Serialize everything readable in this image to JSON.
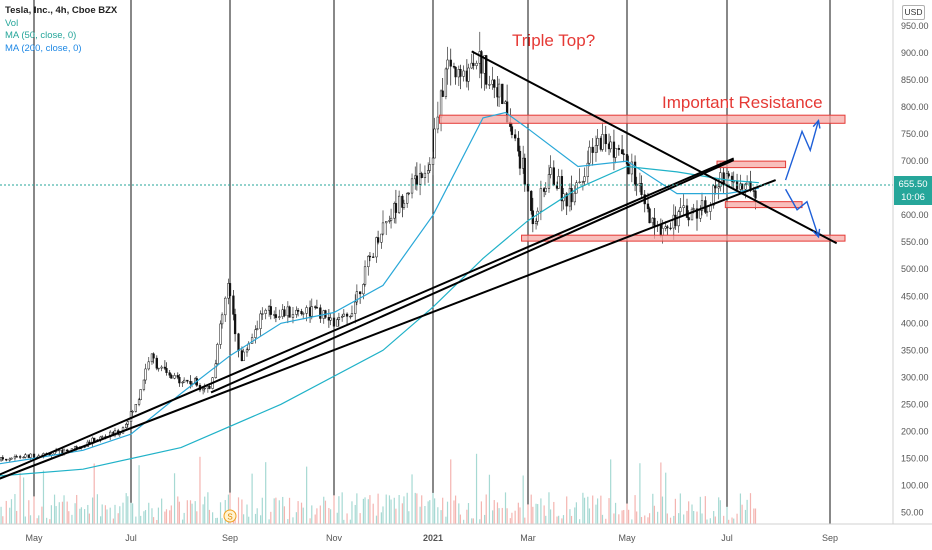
{
  "chart_data": {
    "type": "candlestick",
    "symbol_label": "Tesla, Inc., 4h, Cboe BZX",
    "indicators": [
      "Vol",
      "MA (50, close, 0)",
      "MA (200, close, 0)"
    ],
    "currency": "USD",
    "last_price": "655.50",
    "countdown": "10:06",
    "y_axis": {
      "ylim": [
        30,
        1000
      ],
      "ticks": [
        50,
        100,
        150,
        200,
        250,
        300,
        350,
        400,
        450,
        500,
        550,
        600,
        650,
        700,
        750,
        800,
        850,
        900,
        950
      ],
      "tick_labels": [
        "50.00",
        "100.00",
        "150.00",
        "200.00",
        "250.00",
        "300.00",
        "350.00",
        "400.00",
        "450.00",
        "500.00",
        "550.00",
        "600.00",
        "650.00",
        "700.00",
        "750.00",
        "800.00",
        "850.00",
        "900.00",
        "950.00"
      ]
    },
    "x_axis": {
      "tick_labels": [
        "May",
        "Jul",
        "Sep",
        "Nov",
        "2021",
        "Mar",
        "May",
        "Jul",
        "Sep"
      ]
    },
    "price_path": [
      [
        "2020-04-01",
        145
      ],
      [
        "2020-04-15",
        150
      ],
      [
        "2020-05-01",
        155
      ],
      [
        "2020-05-20",
        162
      ],
      [
        "2020-06-10",
        185
      ],
      [
        "2020-06-25",
        200
      ],
      [
        "2020-07-05",
        250
      ],
      [
        "2020-07-13",
        340
      ],
      [
        "2020-07-25",
        300
      ],
      [
        "2020-08-10",
        290
      ],
      [
        "2020-08-20",
        280
      ],
      [
        "2020-08-31",
        470
      ],
      [
        "2020-09-08",
        330
      ],
      [
        "2020-09-20",
        420
      ],
      [
        "2020-10-05",
        420
      ],
      [
        "2020-10-20",
        425
      ],
      [
        "2020-11-01",
        400
      ],
      [
        "2020-11-10",
        410
      ],
      [
        "2020-11-20",
        490
      ],
      [
        "2020-12-01",
        580
      ],
      [
        "2020-12-15",
        640
      ],
      [
        "2020-12-31",
        700
      ],
      [
        "2021-01-10",
        880
      ],
      [
        "2021-01-20",
        850
      ],
      [
        "2021-01-27",
        900
      ],
      [
        "2021-02-10",
        840
      ],
      [
        "2021-02-25",
        700
      ],
      [
        "2021-03-05",
        590
      ],
      [
        "2021-03-15",
        680
      ],
      [
        "2021-03-25",
        630
      ],
      [
        "2021-04-05",
        680
      ],
      [
        "2021-04-15",
        740
      ],
      [
        "2021-04-25",
        720
      ],
      [
        "2021-05-05",
        680
      ],
      [
        "2021-05-15",
        590
      ],
      [
        "2021-05-20",
        570
      ],
      [
        "2021-06-01",
        600
      ],
      [
        "2021-06-10",
        605
      ],
      [
        "2021-06-20",
        620
      ],
      [
        "2021-06-30",
        680
      ],
      [
        "2021-07-10",
        650
      ],
      [
        "2021-07-20",
        655
      ]
    ],
    "ma50": [
      [
        "2020-04-01",
        135
      ],
      [
        "2020-05-01",
        150
      ],
      [
        "2020-06-01",
        165
      ],
      [
        "2020-07-01",
        195
      ],
      [
        "2020-08-01",
        270
      ],
      [
        "2020-09-01",
        340
      ],
      [
        "2020-10-01",
        400
      ],
      [
        "2020-11-01",
        420
      ],
      [
        "2020-12-01",
        470
      ],
      [
        "2021-01-01",
        600
      ],
      [
        "2021-02-01",
        780
      ],
      [
        "2021-02-15",
        790
      ],
      [
        "2021-03-01",
        760
      ],
      [
        "2021-04-01",
        690
      ],
      [
        "2021-05-01",
        700
      ],
      [
        "2021-06-01",
        640
      ],
      [
        "2021-07-01",
        640
      ],
      [
        "2021-07-20",
        650
      ]
    ],
    "ma200": [
      [
        "2020-04-01",
        115
      ],
      [
        "2020-06-01",
        130
      ],
      [
        "2020-08-01",
        170
      ],
      [
        "2020-10-01",
        250
      ],
      [
        "2020-12-01",
        350
      ],
      [
        "2021-01-01",
        430
      ],
      [
        "2021-02-01",
        520
      ],
      [
        "2021-03-01",
        590
      ],
      [
        "2021-04-01",
        650
      ],
      [
        "2021-05-01",
        690
      ],
      [
        "2021-06-01",
        680
      ],
      [
        "2021-07-01",
        665
      ],
      [
        "2021-07-20",
        660
      ]
    ],
    "trendlines": [
      {
        "from": [
          "2020-04-01",
          106
        ],
        "to": [
          "2021-07-05",
          705
        ]
      },
      {
        "from": [
          "2020-04-01",
          100
        ],
        "to": [
          "2021-07-30",
          665
        ]
      },
      {
        "from": [
          "2020-08-20",
          272
        ],
        "to": [
          "2021-07-05",
          702
        ]
      },
      {
        "from": [
          "2021-01-25",
          903
        ],
        "to": [
          "2021-09-05",
          548
        ]
      }
    ],
    "zones": [
      {
        "from": "2021-01-05",
        "to": "2021-09-10",
        "low": 770,
        "high": 785
      },
      {
        "from": "2021-06-25",
        "to": "2021-08-05",
        "low": 688,
        "high": 700
      },
      {
        "from": "2021-06-30",
        "to": "2021-08-15",
        "low": 614,
        "high": 625
      },
      {
        "from": "2021-02-25",
        "to": "2021-09-10",
        "low": 552,
        "high": 563
      }
    ],
    "scenario_arrows": [
      {
        "points": [
          [
            "2021-08-05",
            665
          ],
          [
            "2021-08-15",
            755
          ],
          [
            "2021-08-20",
            720
          ],
          [
            "2021-08-25",
            775
          ]
        ]
      },
      {
        "points": [
          [
            "2021-08-05",
            648
          ],
          [
            "2021-08-12",
            610
          ],
          [
            "2021-08-18",
            625
          ],
          [
            "2021-08-25",
            560
          ]
        ]
      }
    ],
    "annotations": [
      "Triple Top?",
      "Important Resistance"
    ],
    "event_marker": "S"
  }
}
